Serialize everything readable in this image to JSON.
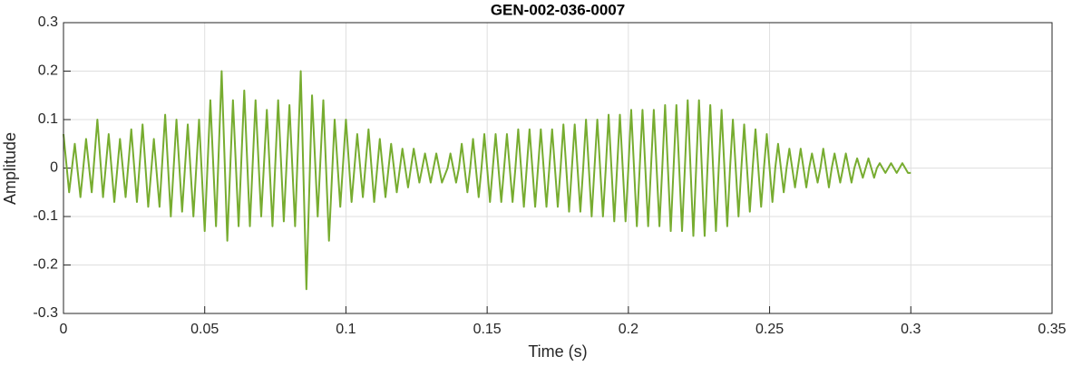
{
  "chart_data": {
    "type": "line",
    "title": "GEN-002-036-0007",
    "x_label": "Time (s)",
    "y_label": "Amplitude",
    "color": "#77ac30",
    "grid": true,
    "xlim": [
      0,
      0.35
    ],
    "xticks": [
      0,
      0.05,
      0.1,
      0.15,
      0.2,
      0.25,
      0.3,
      0.35
    ],
    "ylim": [
      -0.3,
      0.3
    ],
    "yticks": [
      -0.3,
      -0.2,
      -0.1,
      0,
      0.1,
      0.2,
      0.3
    ],
    "x": [
      0,
      0.002,
      0.004,
      0.006,
      0.008,
      0.01,
      0.012,
      0.014,
      0.016,
      0.018,
      0.02,
      0.022,
      0.024,
      0.026,
      0.028,
      0.03,
      0.032,
      0.034,
      0.036,
      0.038,
      0.04,
      0.042,
      0.044,
      0.046,
      0.048,
      0.05,
      0.052,
      0.054,
      0.056,
      0.058,
      0.06,
      0.062,
      0.064,
      0.066,
      0.068,
      0.07,
      0.072,
      0.074,
      0.076,
      0.078,
      0.08,
      0.082,
      0.084,
      0.086,
      0.088,
      0.09,
      0.092,
      0.094,
      0.096,
      0.098,
      0.1,
      0.102,
      0.104,
      0.106,
      0.108,
      0.11,
      0.112,
      0.114,
      0.116,
      0.118,
      0.12,
      0.122,
      0.124,
      0.126,
      0.128,
      0.13,
      0.132,
      0.134,
      0.136,
      0.137,
      0.138,
      0.139,
      0.14,
      0.141,
      0.142,
      0.143,
      0.144,
      0.145,
      0.146,
      0.147,
      0.148,
      0.149,
      0.15,
      0.151,
      0.152,
      0.153,
      0.154,
      0.155,
      0.156,
      0.157,
      0.158,
      0.159,
      0.16,
      0.161,
      0.162,
      0.163,
      0.164,
      0.165,
      0.166,
      0.167,
      0.168,
      0.169,
      0.17,
      0.171,
      0.172,
      0.173,
      0.174,
      0.175,
      0.176,
      0.177,
      0.178,
      0.179,
      0.18,
      0.181,
      0.182,
      0.183,
      0.184,
      0.185,
      0.186,
      0.187,
      0.188,
      0.189,
      0.19,
      0.191,
      0.192,
      0.193,
      0.194,
      0.195,
      0.196,
      0.197,
      0.198,
      0.199,
      0.2,
      0.201,
      0.202,
      0.203,
      0.204,
      0.205,
      0.206,
      0.207,
      0.208,
      0.209,
      0.21,
      0.211,
      0.212,
      0.213,
      0.214,
      0.215,
      0.216,
      0.217,
      0.218,
      0.219,
      0.22,
      0.221,
      0.222,
      0.223,
      0.224,
      0.225,
      0.226,
      0.227,
      0.228,
      0.229,
      0.23,
      0.231,
      0.232,
      0.233,
      0.234,
      0.235,
      0.236,
      0.237,
      0.238,
      0.239,
      0.24,
      0.241,
      0.242,
      0.243,
      0.244,
      0.245,
      0.246,
      0.247,
      0.248,
      0.249,
      0.25,
      0.251,
      0.252,
      0.253,
      0.254,
      0.255,
      0.256,
      0.257,
      0.258,
      0.259,
      0.26,
      0.261,
      0.262,
      0.263,
      0.264,
      0.265,
      0.266,
      0.267,
      0.268,
      0.269,
      0.27,
      0.271,
      0.272,
      0.273,
      0.274,
      0.275,
      0.276,
      0.277,
      0.278,
      0.279,
      0.28,
      0.281,
      0.282,
      0.283,
      0.284,
      0.285,
      0.286,
      0.287,
      0.288,
      0.289,
      0.29,
      0.291,
      0.292,
      0.293,
      0.294,
      0.295,
      0.296,
      0.297,
      0.298,
      0.299,
      0.3
    ],
    "values": [
      0.07,
      -0.05,
      0.05,
      -0.06,
      0.06,
      -0.05,
      0.1,
      -0.06,
      0.07,
      -0.07,
      0.06,
      -0.06,
      0.08,
      -0.07,
      0.09,
      -0.08,
      0.06,
      -0.08,
      0.11,
      -0.1,
      0.1,
      -0.09,
      0.09,
      -0.1,
      0.1,
      -0.13,
      0.14,
      -0.12,
      0.2,
      -0.15,
      0.14,
      -0.12,
      0.16,
      -0.12,
      0.14,
      -0.1,
      0.12,
      -0.12,
      0.14,
      -0.11,
      0.13,
      -0.12,
      0.2,
      -0.25,
      0.15,
      -0.1,
      0.14,
      -0.15,
      0.1,
      -0.08,
      0.1,
      -0.07,
      0.07,
      -0.06,
      0.08,
      -0.07,
      0.06,
      -0.06,
      0.05,
      -0.05,
      0.04,
      -0.04,
      0.04,
      -0.03,
      0.03,
      -0.03,
      0.03,
      -0.03,
      0,
      0.03,
      0,
      -0.03,
      0,
      0.05,
      0,
      -0.05,
      0,
      0.06,
      0,
      -0.06,
      0,
      0.07,
      0,
      -0.07,
      0,
      0.07,
      0,
      -0.07,
      0,
      0.07,
      0,
      -0.07,
      0,
      0.08,
      0,
      -0.08,
      0,
      0.08,
      0,
      -0.08,
      0,
      0.08,
      0,
      -0.08,
      0,
      0.08,
      0,
      -0.08,
      0,
      0.09,
      0,
      -0.09,
      0,
      0.09,
      0,
      -0.09,
      0,
      0.1,
      0,
      -0.1,
      0,
      0.1,
      0,
      -0.1,
      0,
      0.11,
      0,
      -0.11,
      0,
      0.11,
      0,
      -0.11,
      0,
      0.12,
      0,
      -0.12,
      0,
      0.12,
      0,
      -0.12,
      0,
      0.12,
      0,
      -0.12,
      0,
      0.13,
      0,
      -0.13,
      0,
      0.13,
      0,
      -0.13,
      0,
      0.14,
      0,
      -0.14,
      0,
      0.14,
      0,
      -0.14,
      0,
      0.13,
      0,
      -0.13,
      0,
      0.12,
      0,
      -0.12,
      0,
      0.1,
      0,
      -0.1,
      0,
      0.09,
      0,
      -0.09,
      0,
      0.08,
      0,
      -0.08,
      0,
      0.07,
      0,
      -0.07,
      0,
      0.05,
      0,
      -0.05,
      0,
      0.04,
      0,
      -0.04,
      0,
      0.04,
      0,
      -0.04,
      0,
      0.03,
      0,
      -0.03,
      0,
      0.04,
      0,
      -0.04,
      0,
      0.03,
      0,
      -0.03,
      0,
      0.03,
      0,
      -0.03,
      0,
      0.02,
      0,
      -0.02,
      0,
      0.02,
      0,
      -0.02,
      0,
      0.01,
      0,
      -0.01,
      0,
      0.01,
      0,
      -0.01,
      0,
      0.01,
      0,
      -0.01,
      -0.01
    ]
  }
}
